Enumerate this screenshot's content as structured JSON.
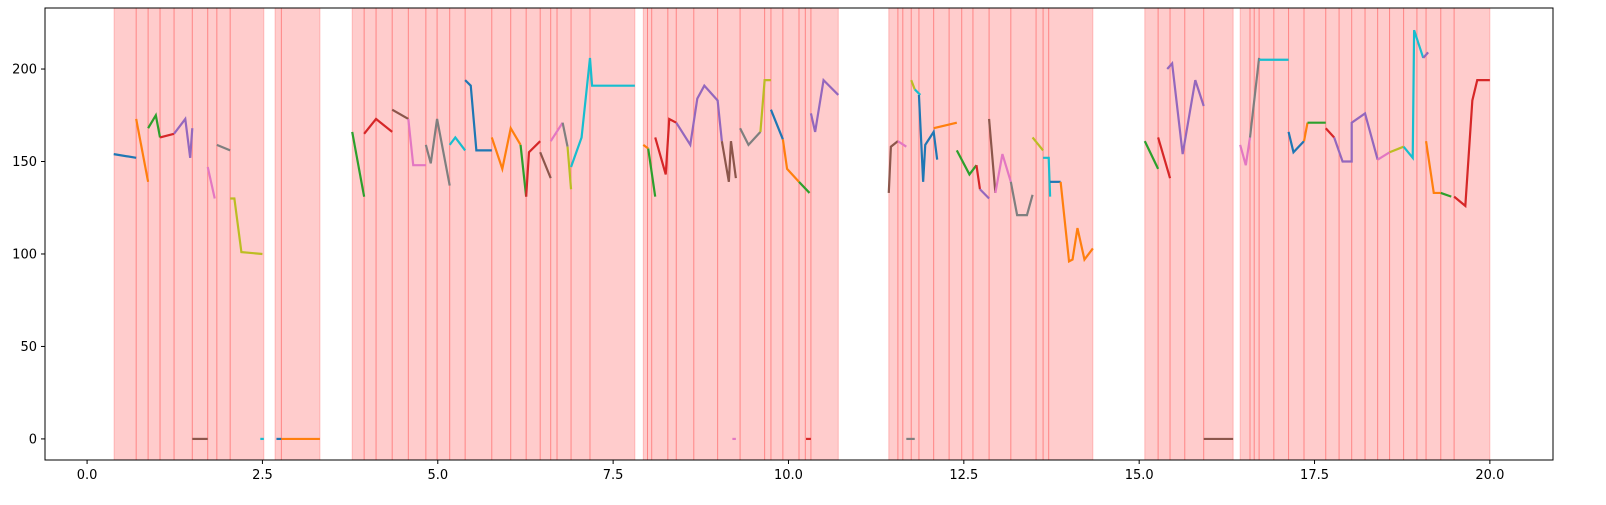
{
  "chart_data": {
    "type": "line",
    "xlim": [
      -0.6,
      20.9
    ],
    "ylim": [
      -11.4,
      233
    ],
    "xticks": [
      {
        "value": 0,
        "label": "0.0"
      },
      2.5,
      {
        "value": 5,
        "label": "5.0"
      },
      7.5,
      {
        "value": 10,
        "label": "10.0"
      },
      12.5,
      {
        "value": 15,
        "label": "15.0"
      },
      17.5,
      {
        "value": 20,
        "label": "20.0"
      }
    ],
    "yticks": [
      0,
      50,
      100,
      150,
      200
    ],
    "span_color": "#ff0000",
    "spans": [
      [
        0.385,
        2.52
      ],
      [
        2.68,
        3.32
      ],
      [
        3.78,
        7.81
      ],
      [
        7.93,
        10.71
      ],
      [
        11.43,
        14.34
      ],
      [
        15.08,
        16.34
      ],
      [
        16.44,
        20.0
      ]
    ],
    "vlines": [
      0.7,
      0.87,
      1.04,
      1.24,
      1.5,
      1.72,
      1.85,
      2.04,
      2.77,
      3.95,
      4.12,
      4.35,
      4.58,
      4.83,
      4.99,
      5.17,
      5.39,
      5.77,
      6.04,
      6.26,
      6.46,
      6.61,
      6.7,
      6.9,
      7.17,
      7.99,
      8.05,
      8.28,
      8.4,
      8.65,
      8.99,
      9.31,
      9.66,
      9.75,
      9.92,
      10.15,
      10.24,
      10.32,
      11.56,
      11.63,
      11.75,
      11.86,
      12.07,
      12.29,
      12.47,
      12.63,
      12.86,
      13.17,
      13.53,
      13.63,
      13.71,
      15.27,
      15.44,
      15.65,
      15.92,
      16.58,
      16.64,
      16.71,
      16.92,
      17.13,
      17.35,
      17.66,
      17.85,
      18.03,
      18.22,
      18.4,
      18.57,
      18.77,
      18.96,
      19.09,
      19.3,
      19.49
    ],
    "series": [
      {
        "color": "#1f77b4",
        "x": [
          0.38,
          0.7
        ],
        "values": [
          154,
          152
        ]
      },
      {
        "color": "#ff7f0e",
        "x": [
          0.7,
          0.87
        ],
        "values": [
          173,
          139
        ]
      },
      {
        "color": "#2ca02c",
        "x": [
          0.87,
          0.98,
          1.04
        ],
        "values": [
          168,
          175,
          163
        ]
      },
      {
        "color": "#d62728",
        "x": [
          1.04,
          1.24
        ],
        "values": [
          163,
          165
        ]
      },
      {
        "color": "#9467bd",
        "x": [
          1.24,
          1.4,
          1.47,
          1.5
        ],
        "values": [
          165,
          173,
          152,
          168
        ]
      },
      {
        "color": "#8c564b",
        "x": [
          1.5,
          1.72
        ],
        "values": [
          0,
          0
        ]
      },
      {
        "color": "#e377c2",
        "x": [
          1.72,
          1.82
        ],
        "values": [
          147,
          130
        ]
      },
      {
        "color": "#7f7f7f",
        "x": [
          1.85,
          2.04
        ],
        "values": [
          159,
          156
        ]
      },
      {
        "color": "#bcbd22",
        "x": [
          2.04,
          2.1,
          2.2,
          2.5
        ],
        "values": [
          130,
          130,
          101,
          100
        ]
      },
      {
        "color": "#17becf",
        "x": [
          2.47,
          2.52
        ],
        "values": [
          0,
          0
        ]
      },
      {
        "color": "#1f77b4",
        "x": [
          2.7,
          2.77
        ],
        "values": [
          0,
          0
        ]
      },
      {
        "color": "#ff7f0e",
        "x": [
          2.77,
          3.32
        ],
        "values": [
          0,
          0
        ]
      },
      {
        "color": "#2ca02c",
        "x": [
          3.78,
          3.95
        ],
        "values": [
          166,
          131
        ]
      },
      {
        "color": "#d62728",
        "x": [
          3.95,
          4.12,
          4.35
        ],
        "values": [
          165,
          173,
          166
        ]
      },
      {
        "color": "#8c564b",
        "x": [
          4.35,
          4.58
        ],
        "values": [
          178,
          173
        ]
      },
      {
        "color": "#e377c2",
        "x": [
          4.58,
          4.65,
          4.83
        ],
        "values": [
          173,
          148,
          148
        ]
      },
      {
        "color": "#7f7f7f",
        "x": [
          4.83,
          4.9,
          4.99,
          5.17
        ],
        "values": [
          159,
          149,
          173,
          137
        ]
      },
      {
        "color": "#17becf",
        "x": [
          5.17,
          5.25,
          5.39
        ],
        "values": [
          159,
          163,
          156
        ]
      },
      {
        "color": "#1f77b4",
        "x": [
          5.39,
          5.47,
          5.55,
          5.77
        ],
        "values": [
          194,
          191,
          156,
          156
        ]
      },
      {
        "color": "#ff7f0e",
        "x": [
          5.77,
          5.92,
          6.04,
          6.18
        ],
        "values": [
          163,
          146,
          168,
          159
        ]
      },
      {
        "color": "#2ca02c",
        "x": [
          6.18,
          6.26
        ],
        "values": [
          159,
          131
        ]
      },
      {
        "color": "#d62728",
        "x": [
          6.26,
          6.3,
          6.46
        ],
        "values": [
          131,
          155,
          161
        ]
      },
      {
        "color": "#8c564b",
        "x": [
          6.46,
          6.61
        ],
        "values": [
          155,
          141
        ]
      },
      {
        "color": "#e377c2",
        "x": [
          6.61,
          6.78
        ],
        "values": [
          161,
          171
        ]
      },
      {
        "color": "#7f7f7f",
        "x": [
          6.78,
          6.85
        ],
        "values": [
          171,
          158
        ]
      },
      {
        "color": "#bcbd22",
        "x": [
          6.85,
          6.9
        ],
        "values": [
          158,
          135
        ]
      },
      {
        "color": "#17becf",
        "x": [
          6.9,
          7.05,
          7.17,
          7.2,
          7.81
        ],
        "values": [
          147,
          163,
          206,
          191,
          191
        ]
      },
      {
        "color": "#ff7f0e",
        "x": [
          7.93,
          8.0
        ],
        "values": [
          159,
          157
        ]
      },
      {
        "color": "#2ca02c",
        "x": [
          8.0,
          8.1
        ],
        "values": [
          157,
          131
        ]
      },
      {
        "color": "#d62728",
        "x": [
          8.1,
          8.25,
          8.3,
          8.4
        ],
        "values": [
          163,
          143,
          173,
          171
        ]
      },
      {
        "color": "#9467bd",
        "x": [
          8.4,
          8.6,
          8.7,
          8.8,
          8.99,
          9.05
        ],
        "values": [
          171,
          159,
          184,
          191,
          183,
          161
        ]
      },
      {
        "color": "#8c564b",
        "x": [
          9.05,
          9.15,
          9.18,
          9.25
        ],
        "values": [
          161,
          139,
          161,
          141
        ]
      },
      {
        "color": "#e377c2",
        "x": [
          9.2,
          9.25
        ],
        "values": [
          0,
          0
        ]
      },
      {
        "color": "#7f7f7f",
        "x": [
          9.31,
          9.43,
          9.6
        ],
        "values": [
          168,
          159,
          166
        ]
      },
      {
        "color": "#bcbd22",
        "x": [
          9.6,
          9.66,
          9.75
        ],
        "values": [
          166,
          194,
          194
        ]
      },
      {
        "color": "#1f77b4",
        "x": [
          9.75,
          9.92
        ],
        "values": [
          178,
          162
        ]
      },
      {
        "color": "#ff7f0e",
        "x": [
          9.92,
          9.98,
          10.15
        ],
        "values": [
          162,
          146,
          139
        ]
      },
      {
        "color": "#2ca02c",
        "x": [
          10.15,
          10.3
        ],
        "values": [
          139,
          133
        ]
      },
      {
        "color": "#d62728",
        "x": [
          10.25,
          10.32
        ],
        "values": [
          0,
          0
        ]
      },
      {
        "color": "#9467bd",
        "x": [
          10.32,
          10.38,
          10.5,
          10.71
        ],
        "values": [
          176,
          166,
          194,
          186
        ]
      },
      {
        "color": "#8c564b",
        "x": [
          11.43,
          11.46,
          11.56
        ],
        "values": [
          133,
          158,
          161
        ]
      },
      {
        "color": "#e377c2",
        "x": [
          11.56,
          11.68
        ],
        "values": [
          161,
          158
        ]
      },
      {
        "color": "#7f7f7f",
        "x": [
          11.68,
          11.8
        ],
        "values": [
          0,
          0
        ]
      },
      {
        "color": "#bcbd22",
        "x": [
          11.75,
          11.8
        ],
        "values": [
          194,
          189
        ]
      },
      {
        "color": "#17becf",
        "x": [
          11.8,
          11.88
        ],
        "values": [
          189,
          186
        ]
      },
      {
        "color": "#1f77b4",
        "x": [
          11.86,
          11.92,
          11.95,
          12.07,
          12.12
        ],
        "values": [
          186,
          139,
          159,
          166,
          151
        ]
      },
      {
        "color": "#ff7f0e",
        "x": [
          12.07,
          12.4
        ],
        "values": [
          168,
          171
        ]
      },
      {
        "color": "#2ca02c",
        "x": [
          12.4,
          12.58,
          12.68
        ],
        "values": [
          156,
          143,
          148
        ]
      },
      {
        "color": "#d62728",
        "x": [
          12.68,
          12.73
        ],
        "values": [
          148,
          135
        ]
      },
      {
        "color": "#9467bd",
        "x": [
          12.73,
          12.86
        ],
        "values": [
          135,
          130
        ]
      },
      {
        "color": "#8c564b",
        "x": [
          12.86,
          12.95
        ],
        "values": [
          173,
          133
        ]
      },
      {
        "color": "#e377c2",
        "x": [
          12.95,
          13.05,
          13.17
        ],
        "values": [
          133,
          154,
          139
        ]
      },
      {
        "color": "#7f7f7f",
        "x": [
          13.17,
          13.26,
          13.4,
          13.48
        ],
        "values": [
          139,
          121,
          121,
          132
        ]
      },
      {
        "color": "#bcbd22",
        "x": [
          13.48,
          13.63
        ],
        "values": [
          163,
          156
        ]
      },
      {
        "color": "#17becf",
        "x": [
          13.63,
          13.71,
          13.73
        ],
        "values": [
          152,
          152,
          131
        ]
      },
      {
        "color": "#1f77b4",
        "x": [
          13.73,
          13.88
        ],
        "values": [
          139,
          139
        ]
      },
      {
        "color": "#ff7f0e",
        "x": [
          13.88,
          14.0,
          14.05,
          14.12,
          14.22,
          14.34
        ],
        "values": [
          139,
          96,
          97,
          114,
          97,
          103
        ]
      },
      {
        "color": "#2ca02c",
        "x": [
          15.08,
          15.27
        ],
        "values": [
          161,
          146
        ]
      },
      {
        "color": "#d62728",
        "x": [
          15.27,
          15.44
        ],
        "values": [
          163,
          141
        ]
      },
      {
        "color": "#9467bd",
        "x": [
          15.4,
          15.47,
          15.62,
          15.8,
          15.92
        ],
        "values": [
          200,
          203,
          154,
          194,
          180
        ]
      },
      {
        "color": "#8c564b",
        "x": [
          15.92,
          16.34
        ],
        "values": [
          0,
          0
        ]
      },
      {
        "color": "#e377c2",
        "x": [
          16.44,
          16.52,
          16.58
        ],
        "values": [
          159,
          148,
          163
        ]
      },
      {
        "color": "#7f7f7f",
        "x": [
          16.58,
          16.71
        ],
        "values": [
          163,
          206
        ]
      },
      {
        "color": "#17becf",
        "x": [
          16.71,
          17.13
        ],
        "values": [
          205,
          205
        ]
      },
      {
        "color": "#1f77b4",
        "x": [
          17.13,
          17.2,
          17.35
        ],
        "values": [
          166,
          155,
          161
        ]
      },
      {
        "color": "#ff7f0e",
        "x": [
          17.35,
          17.4
        ],
        "values": [
          161,
          171
        ]
      },
      {
        "color": "#2ca02c",
        "x": [
          17.4,
          17.66
        ],
        "values": [
          171,
          171
        ]
      },
      {
        "color": "#d62728",
        "x": [
          17.66,
          17.78
        ],
        "values": [
          168,
          163
        ]
      },
      {
        "color": "#9467bd",
        "x": [
          17.78,
          17.9,
          18.03,
          18.03,
          18.22,
          18.4
        ],
        "values": [
          163,
          150,
          150,
          171,
          176,
          151
        ]
      },
      {
        "color": "#e377c2",
        "x": [
          18.4,
          18.57
        ],
        "values": [
          151,
          155
        ]
      },
      {
        "color": "#bcbd22",
        "x": [
          18.57,
          18.77
        ],
        "values": [
          155,
          158
        ]
      },
      {
        "color": "#17becf",
        "x": [
          18.77,
          18.9,
          18.92,
          19.05
        ],
        "values": [
          158,
          152,
          221,
          206
        ]
      },
      {
        "color": "#9467bd",
        "x": [
          19.05,
          19.12
        ],
        "values": [
          206,
          209
        ]
      },
      {
        "color": "#ff7f0e",
        "x": [
          19.09,
          19.2,
          19.3
        ],
        "values": [
          161,
          133,
          133
        ]
      },
      {
        "color": "#2ca02c",
        "x": [
          19.3,
          19.45
        ],
        "values": [
          133,
          131
        ]
      },
      {
        "color": "#d62728",
        "x": [
          19.49,
          19.65,
          19.75,
          19.82,
          20.0
        ],
        "values": [
          131,
          126,
          183,
          194,
          194
        ]
      }
    ]
  }
}
